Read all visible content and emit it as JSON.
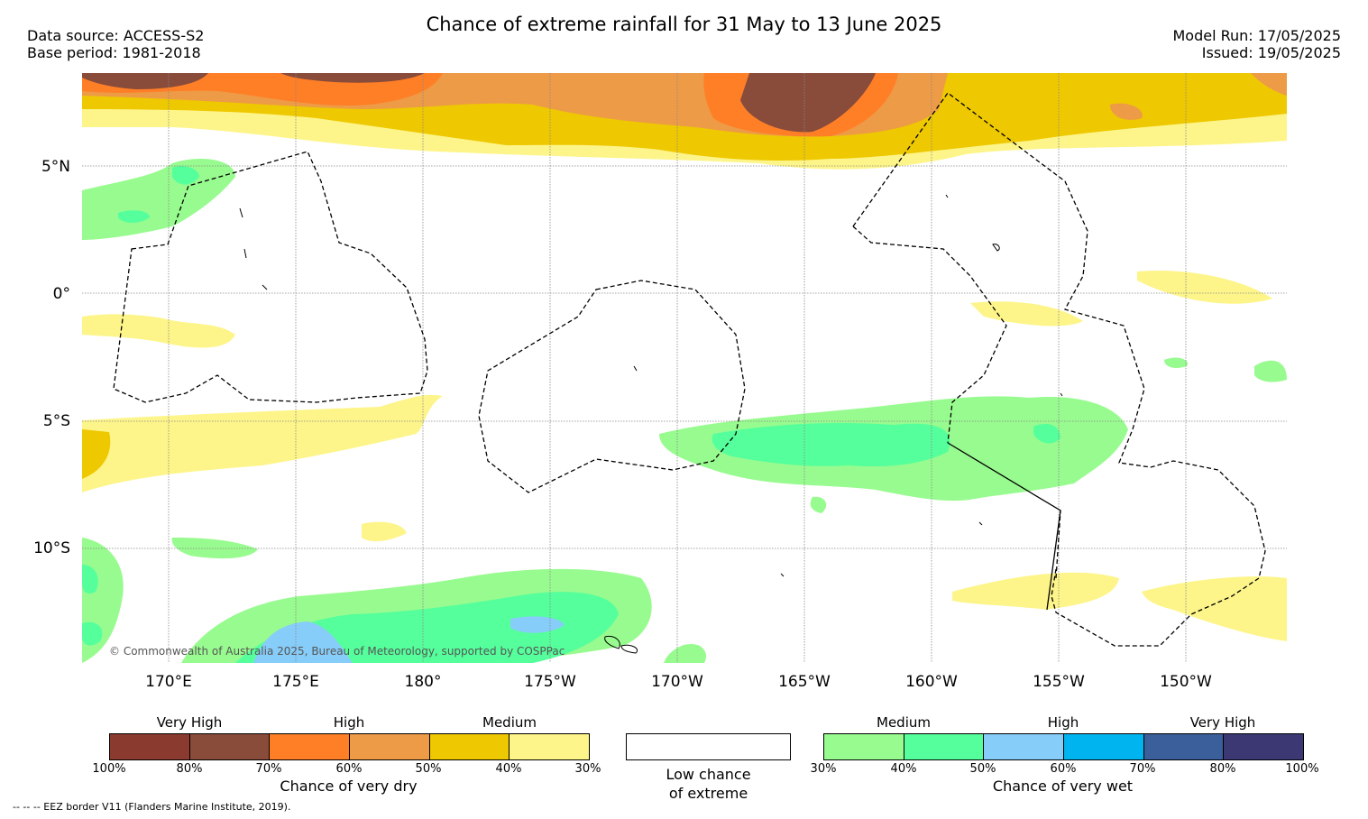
{
  "title": "Chance of extreme rainfall for 31 May to 13 June 2025",
  "data_source": "Data source: ACCESS-S2",
  "base_period": "Base period: 1981-2018",
  "model_run": "Model Run: 17/05/2025",
  "issued": "Issued: 19/05/2025",
  "copyright": "© Commonwealth of Australia 2025, Bureau of Meteorology, supported by COSPPac",
  "lat_labels": [
    "5°N",
    "0°",
    "5°S",
    "10°S"
  ],
  "lon_labels": [
    "170°E",
    "175°E",
    "180°",
    "175°W",
    "170°W",
    "165°W",
    "160°W",
    "155°W",
    "150°W"
  ],
  "legend_dry": {
    "categories": [
      "Very High",
      "High",
      "Medium"
    ],
    "ticks": [
      "100%",
      "80%",
      "70%",
      "60%",
      "50%",
      "40%",
      "30%"
    ],
    "label": "Chance of very dry",
    "colors": [
      "#8b3a2f",
      "#894b3a",
      "#ff7f27",
      "#ed9b47",
      "#eec800",
      "#fdf58a"
    ]
  },
  "legend_neutral": {
    "line1": "Low chance",
    "line2": "of extreme",
    "color": "#ffffff"
  },
  "legend_wet": {
    "categories": [
      "Medium",
      "High",
      "Very High"
    ],
    "ticks": [
      "30%",
      "40%",
      "50%",
      "60%",
      "70%",
      "80%",
      "100%"
    ],
    "label": "Chance of very wet",
    "colors": [
      "#98fb8f",
      "#55ff9b",
      "#87cdf9",
      "#00b4ef",
      "#3a5f9a",
      "#3b3873"
    ]
  },
  "footnote": "--  --  -- EEZ border V11 (Flanders Marine Institute, 2019)."
}
